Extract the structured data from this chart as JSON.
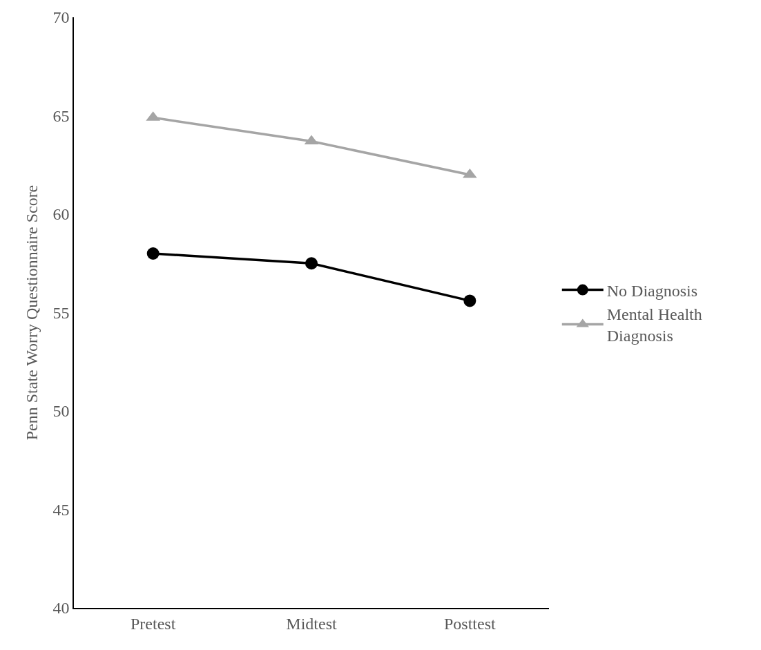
{
  "chart_data": {
    "type": "line",
    "ylabel": "Penn State Worry Questionnaire Score",
    "categories": [
      "Pretest",
      "Midtest",
      "Posttest"
    ],
    "series": [
      {
        "name": "No Diagnosis",
        "color": "#000000",
        "marker": "circle",
        "values": [
          58.0,
          57.5,
          55.6
        ]
      },
      {
        "name": "Mental Health Diagnosis",
        "color": "#a5a5a5",
        "marker": "triangle",
        "values": [
          64.9,
          63.7,
          62.0
        ]
      }
    ],
    "ylim": [
      40,
      70
    ],
    "yticks": [
      40,
      45,
      50,
      55,
      60,
      65,
      70
    ],
    "legend": "right",
    "line_style": "solid"
  }
}
